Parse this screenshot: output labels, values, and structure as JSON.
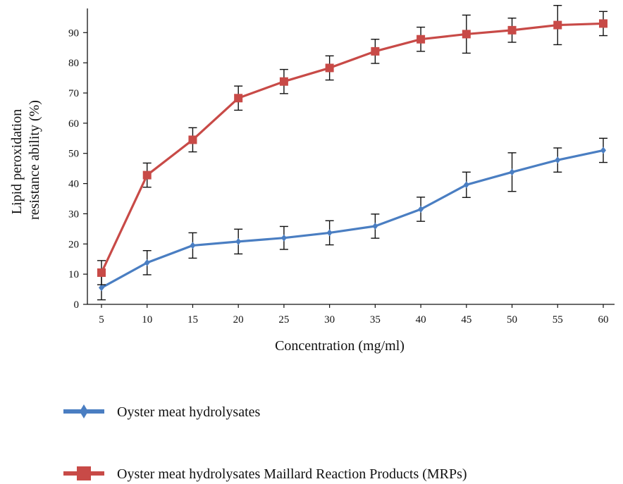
{
  "chart_data": {
    "type": "line",
    "xlabel": "Concentration (mg/ml)",
    "ylabel": [
      "Lipid peroxidation",
      "resistance ability (%)"
    ],
    "x": [
      5,
      10,
      15,
      20,
      25,
      30,
      35,
      40,
      45,
      50,
      55,
      60
    ],
    "ylim": [
      0,
      98
    ],
    "yticks": [
      0,
      10,
      20,
      30,
      40,
      50,
      60,
      70,
      80,
      90
    ],
    "grid": false,
    "legend_position": "bottom",
    "series": [
      {
        "name": "Oyster meat hydrolysates",
        "color": "#4a7ec2",
        "marker": "diamond",
        "values": [
          5.5,
          13.8,
          19.5,
          20.8,
          22.0,
          23.7,
          25.9,
          31.5,
          39.6,
          43.8,
          47.8,
          51.0
        ],
        "errors": [
          4.0,
          4.0,
          4.2,
          4.1,
          3.8,
          4.0,
          4.0,
          4.0,
          4.2,
          6.4,
          4.0,
          4.0
        ]
      },
      {
        "name": "Oyster meat hydrolysates Maillard Reaction Products (MRPs)",
        "color": "#c84a47",
        "marker": "square",
        "values": [
          10.5,
          42.8,
          54.5,
          68.3,
          73.8,
          78.3,
          83.8,
          87.8,
          89.5,
          90.8,
          92.5,
          93.0
        ],
        "errors": [
          4.0,
          4.0,
          4.0,
          4.0,
          4.0,
          4.0,
          4.0,
          4.0,
          6.3,
          4.0,
          6.5,
          4.0
        ]
      }
    ]
  }
}
